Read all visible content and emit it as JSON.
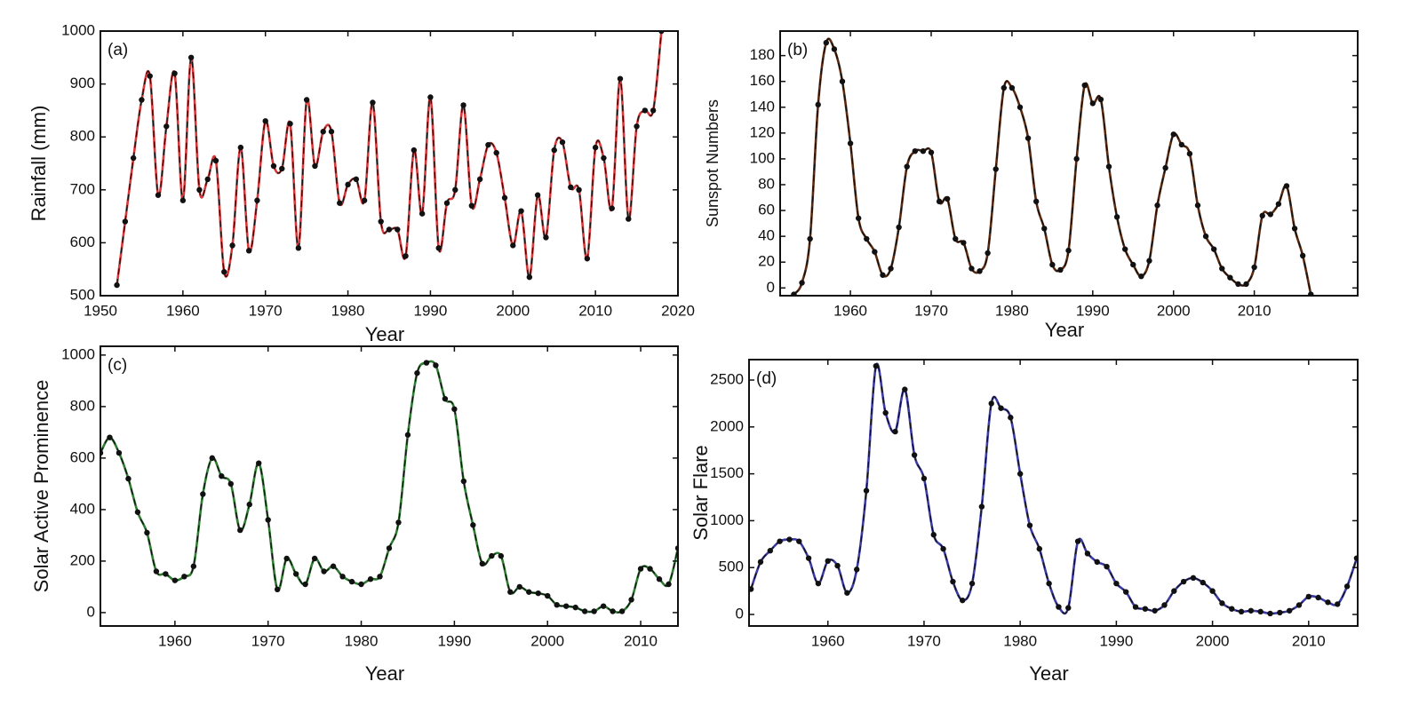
{
  "chart_data": [
    {
      "type": "line",
      "panel_label": "(a)",
      "xlabel": "Year",
      "ylabel": "Rainfall (mm)",
      "color": "#d8383a",
      "marker_color": "#111111",
      "xlim": [
        1950,
        2020
      ],
      "ylim": [
        500,
        1000
      ],
      "xticks": [
        1950,
        1960,
        1970,
        1980,
        1990,
        2000,
        2010,
        2020
      ],
      "yticks": [
        500,
        600,
        700,
        800,
        900,
        1000
      ],
      "x": [
        1952,
        1953,
        1954,
        1955,
        1956,
        1957,
        1958,
        1959,
        1960,
        1961,
        1962,
        1963,
        1964,
        1965,
        1966,
        1967,
        1968,
        1969,
        1970,
        1971,
        1972,
        1973,
        1974,
        1975,
        1976,
        1977,
        1978,
        1979,
        1980,
        1981,
        1982,
        1983,
        1984,
        1985,
        1986,
        1987,
        1988,
        1989,
        1990,
        1991,
        1992,
        1993,
        1994,
        1995,
        1996,
        1997,
        1998,
        1999,
        2000,
        2001,
        2002,
        2003,
        2004,
        2005,
        2006,
        2007,
        2008,
        2009,
        2010,
        2011,
        2012,
        2013,
        2014,
        2015,
        2016,
        2017,
        2018
      ],
      "values": [
        520,
        640,
        760,
        870,
        915,
        690,
        820,
        920,
        680,
        950,
        700,
        720,
        755,
        545,
        595,
        780,
        585,
        680,
        830,
        745,
        740,
        825,
        590,
        870,
        745,
        810,
        810,
        675,
        710,
        720,
        680,
        865,
        640,
        625,
        625,
        575,
        775,
        655,
        875,
        590,
        675,
        700,
        860,
        670,
        720,
        785,
        770,
        685,
        595,
        660,
        535,
        690,
        610,
        775,
        790,
        705,
        700,
        570,
        780,
        760,
        665,
        910,
        645,
        820,
        850,
        850,
        1000
      ]
    },
    {
      "type": "line",
      "panel_label": "(b)",
      "xlabel": "Year",
      "ylabel": "Sunspot Numbers",
      "color": "#5a2a10",
      "marker_color": "#111111",
      "xlim": [
        1951.3,
        2022.8
      ],
      "ylim": [
        -6,
        199
      ],
      "xticks": [
        1960,
        1970,
        1980,
        1990,
        2000,
        2010
      ],
      "yticks": [
        0,
        20,
        40,
        60,
        80,
        100,
        120,
        140,
        160,
        180
      ],
      "x": [
        1953,
        1954,
        1955,
        1956,
        1957,
        1958,
        1959,
        1960,
        1961,
        1962,
        1963,
        1964,
        1965,
        1966,
        1967,
        1968,
        1969,
        1970,
        1971,
        1972,
        1973,
        1974,
        1975,
        1976,
        1977,
        1978,
        1979,
        1980,
        1981,
        1982,
        1983,
        1984,
        1985,
        1986,
        1987,
        1988,
        1989,
        1990,
        1991,
        1992,
        1993,
        1994,
        1995,
        1996,
        1997,
        1998,
        1999,
        2000,
        2001,
        2002,
        2003,
        2004,
        2005,
        2006,
        2007,
        2008,
        2009,
        2010,
        2011,
        2012,
        2013,
        2014,
        2015,
        2016,
        2017
      ],
      "values": [
        -5,
        4,
        38,
        142,
        190,
        185,
        160,
        112,
        54,
        38,
        28,
        10,
        15,
        47,
        94,
        106,
        106,
        105,
        67,
        69,
        38,
        35,
        15,
        13,
        27,
        92,
        155,
        155,
        140,
        116,
        67,
        46,
        18,
        14,
        29,
        100,
        157,
        143,
        146,
        94,
        55,
        30,
        18,
        9,
        21,
        64,
        93,
        119,
        111,
        104,
        64,
        40,
        30,
        15,
        8,
        3,
        3,
        16,
        56,
        57,
        65,
        79,
        46,
        25,
        -5
      ]
    },
    {
      "type": "line",
      "panel_label": "(c)",
      "xlabel": "Year",
      "ylabel": "Solar Active Prominence",
      "color": "#2e7d32",
      "marker_color": "#111111",
      "xlim": [
        1952,
        2014
      ],
      "ylim": [
        -52,
        1034
      ],
      "xticks": [
        1960,
        1970,
        1980,
        1990,
        2000,
        2010
      ],
      "yticks": [
        0,
        200,
        400,
        600,
        800,
        1000
      ],
      "x": [
        1952,
        1953,
        1954,
        1955,
        1956,
        1957,
        1958,
        1959,
        1960,
        1961,
        1962,
        1963,
        1964,
        1965,
        1966,
        1967,
        1968,
        1969,
        1970,
        1971,
        1972,
        1973,
        1974,
        1975,
        1976,
        1977,
        1978,
        1979,
        1980,
        1981,
        1982,
        1983,
        1984,
        1985,
        1986,
        1987,
        1988,
        1989,
        1990,
        1991,
        1992,
        1993,
        1994,
        1995,
        1996,
        1997,
        1998,
        1999,
        2000,
        2001,
        2002,
        2003,
        2004,
        2005,
        2006,
        2007,
        2008,
        2009,
        2010,
        2011,
        2012,
        2013,
        2014
      ],
      "values": [
        620,
        680,
        620,
        520,
        390,
        310,
        160,
        150,
        125,
        140,
        180,
        460,
        600,
        530,
        500,
        320,
        420,
        580,
        360,
        90,
        210,
        150,
        110,
        210,
        160,
        180,
        140,
        120,
        110,
        130,
        140,
        250,
        350,
        690,
        930,
        970,
        960,
        830,
        790,
        510,
        340,
        190,
        220,
        220,
        80,
        100,
        80,
        75,
        65,
        30,
        25,
        20,
        5,
        5,
        25,
        5,
        5,
        50,
        170,
        170,
        130,
        110,
        250
      ]
    },
    {
      "type": "line",
      "panel_label": "(d)",
      "xlabel": "Year",
      "ylabel": "Solar Flare",
      "color": "#3b3ba6",
      "marker_color": "#111111",
      "xlim": [
        1951.8,
        2015.1
      ],
      "ylim": [
        -123,
        2718
      ],
      "xticks": [
        1960,
        1970,
        1980,
        1990,
        2000,
        2010
      ],
      "yticks": [
        0,
        500,
        1000,
        1500,
        2000,
        2500
      ],
      "x": [
        1952,
        1953,
        1954,
        1955,
        1956,
        1957,
        1958,
        1959,
        1960,
        1961,
        1962,
        1963,
        1964,
        1965,
        1966,
        1967,
        1968,
        1969,
        1970,
        1971,
        1972,
        1973,
        1974,
        1975,
        1976,
        1977,
        1978,
        1979,
        1980,
        1981,
        1982,
        1983,
        1984,
        1985,
        1986,
        1987,
        1988,
        1989,
        1990,
        1991,
        1992,
        1993,
        1994,
        1995,
        1996,
        1997,
        1998,
        1999,
        2000,
        2001,
        2002,
        2003,
        2004,
        2005,
        2006,
        2007,
        2008,
        2009,
        2010,
        2011,
        2012,
        2013,
        2014,
        2015
      ],
      "values": [
        270,
        560,
        680,
        780,
        800,
        780,
        600,
        330,
        570,
        520,
        230,
        480,
        1320,
        2650,
        2150,
        1950,
        2400,
        1700,
        1450,
        850,
        700,
        350,
        150,
        330,
        1150,
        2250,
        2200,
        2100,
        1500,
        950,
        700,
        330,
        80,
        70,
        780,
        650,
        560,
        510,
        330,
        240,
        80,
        60,
        40,
        100,
        250,
        350,
        390,
        340,
        250,
        120,
        60,
        30,
        40,
        30,
        10,
        20,
        40,
        100,
        190,
        180,
        130,
        110,
        300,
        600
      ]
    }
  ]
}
